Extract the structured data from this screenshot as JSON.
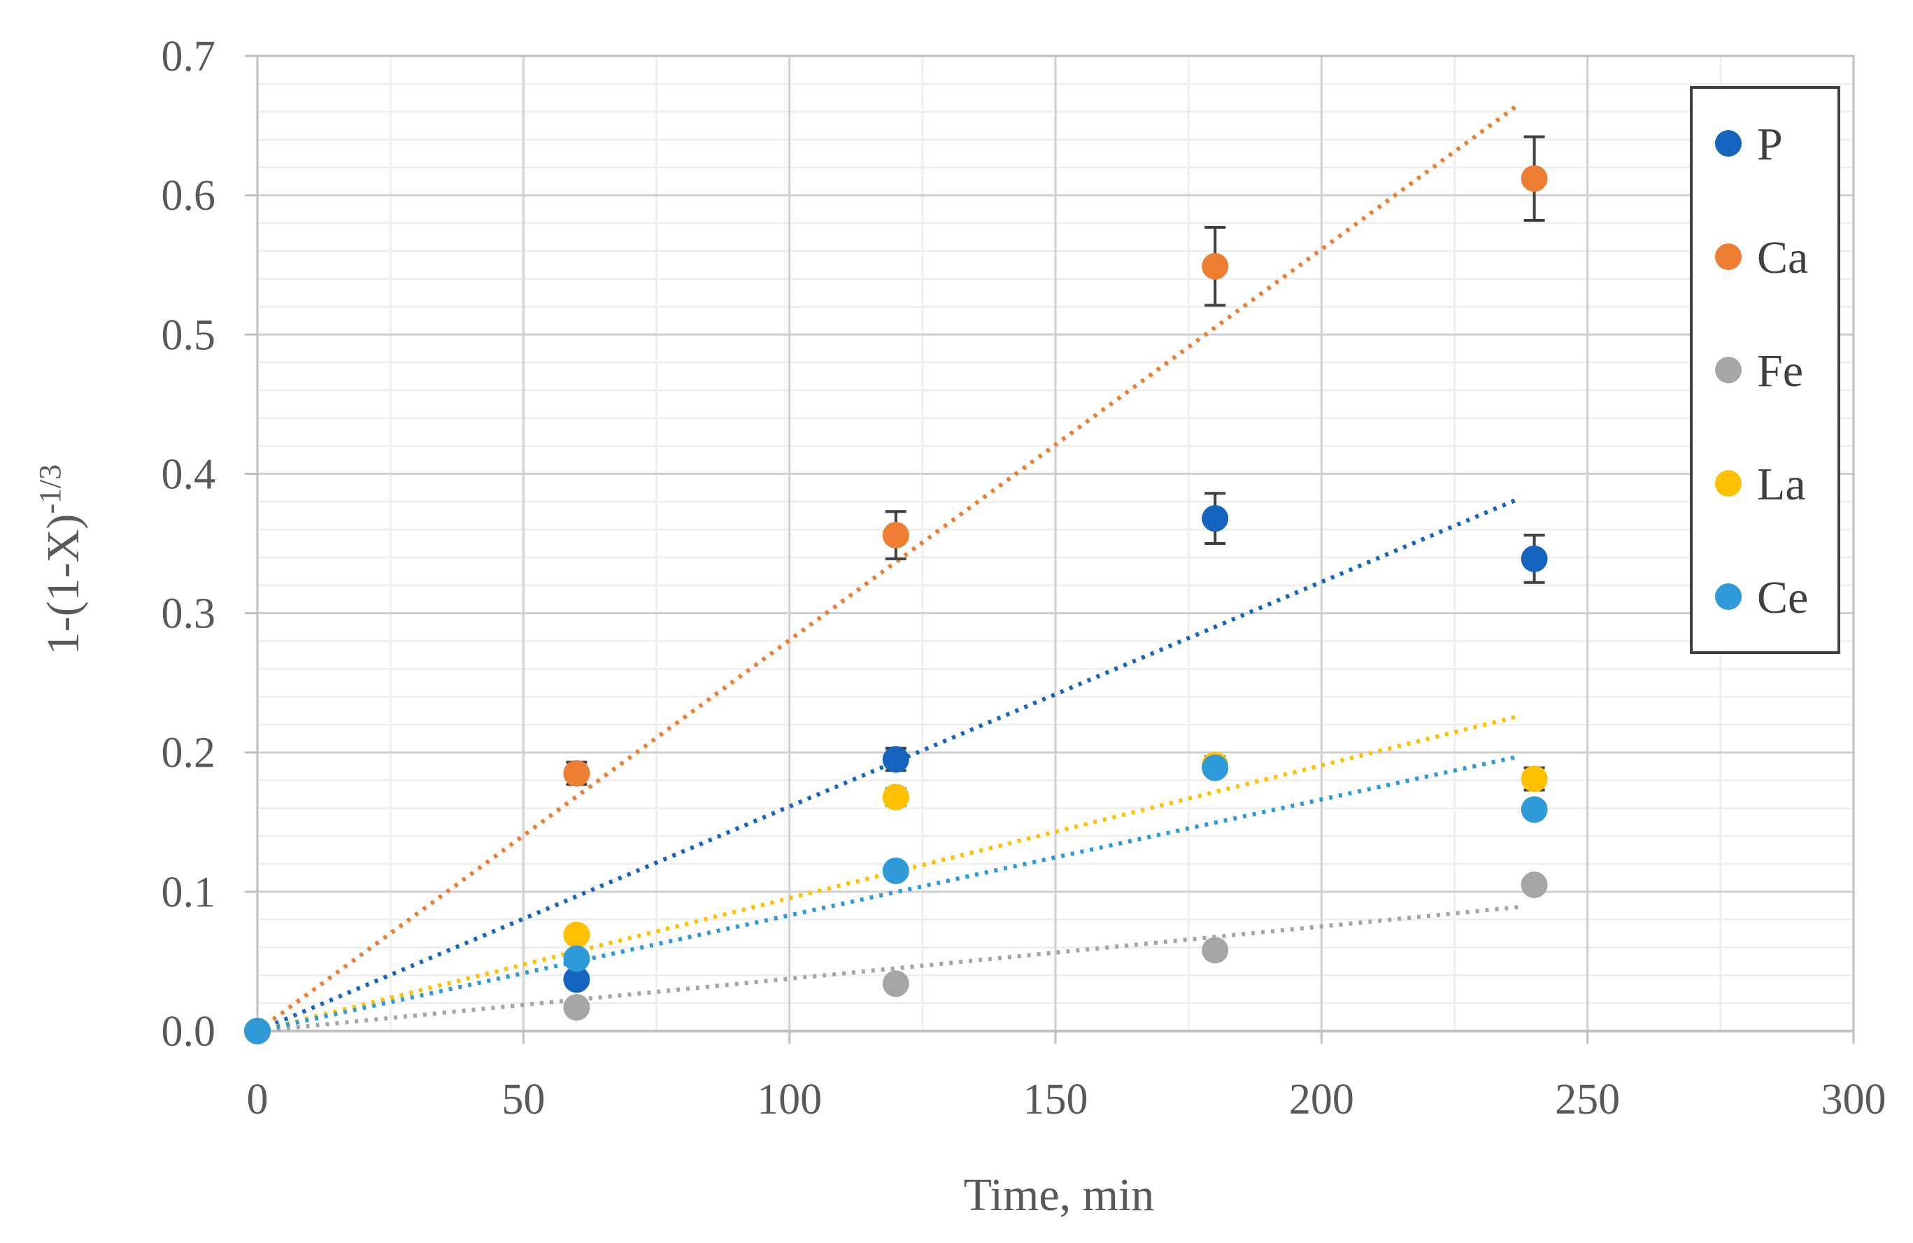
{
  "chart_data": {
    "type": "scatter",
    "title": "",
    "xlabel": "Time, min",
    "ylabel": "1-(1-X)",
    "ylabel_superscript": "-1/3",
    "xlim": [
      0,
      300
    ],
    "ylim": [
      0,
      0.7
    ],
    "xticks": [
      0,
      50,
      100,
      150,
      200,
      250,
      300
    ],
    "yticks": [
      0.0,
      0.1,
      0.2,
      0.3,
      0.4,
      0.5,
      0.6,
      0.7
    ],
    "xtick_labels": [
      "0",
      "50",
      "100",
      "150",
      "200",
      "250",
      "300"
    ],
    "ytick_labels": [
      "0.0",
      "0.1",
      "0.2",
      "0.3",
      "0.4",
      "0.5",
      "0.6",
      "0.7"
    ],
    "grid": true,
    "minor_grid": true,
    "legend_position": "top-right",
    "trendlines": "dotted linear fits through origin",
    "series": [
      {
        "name": "P",
        "color": "#1565C0",
        "x": [
          0,
          60,
          120,
          180,
          240
        ],
        "y": [
          0.0,
          0.037,
          0.195,
          0.368,
          0.339
        ],
        "error": [
          0,
          0,
          0.008,
          0.018,
          0.017
        ],
        "trend": {
          "x_end": 237,
          "y_end": 0.382
        }
      },
      {
        "name": "Ca",
        "color": "#ED7D31",
        "x": [
          0,
          60,
          120,
          180,
          240
        ],
        "y": [
          0.0,
          0.185,
          0.356,
          0.549,
          0.612
        ],
        "error": [
          0,
          0.008,
          0.017,
          0.028,
          0.03
        ],
        "trend": {
          "x_end": 237,
          "y_end": 0.665
        }
      },
      {
        "name": "Fe",
        "color": "#A5A5A5",
        "x": [
          0,
          60,
          120,
          180,
          240
        ],
        "y": [
          0.0,
          0.017,
          0.034,
          0.058,
          0.105
        ],
        "error": [
          0,
          0,
          0,
          0,
          0
        ],
        "trend": {
          "x_end": 237,
          "y_end": 0.089
        }
      },
      {
        "name": "La",
        "color": "#FFC000",
        "x": [
          0,
          60,
          120,
          180,
          240
        ],
        "y": [
          0.0,
          0.069,
          0.168,
          0.191,
          0.181
        ],
        "error": [
          0,
          0,
          0.006,
          0.006,
          0.008
        ],
        "trend": {
          "x_end": 237,
          "y_end": 0.226
        }
      },
      {
        "name": "Ce",
        "color": "#2E9AD8",
        "x": [
          0,
          60,
          120,
          180,
          240
        ],
        "y": [
          0.0,
          0.052,
          0.115,
          0.189,
          0.159
        ],
        "error": [
          0,
          0,
          0,
          0,
          0
        ],
        "trend": {
          "x_end": 237,
          "y_end": 0.197
        }
      }
    ]
  }
}
